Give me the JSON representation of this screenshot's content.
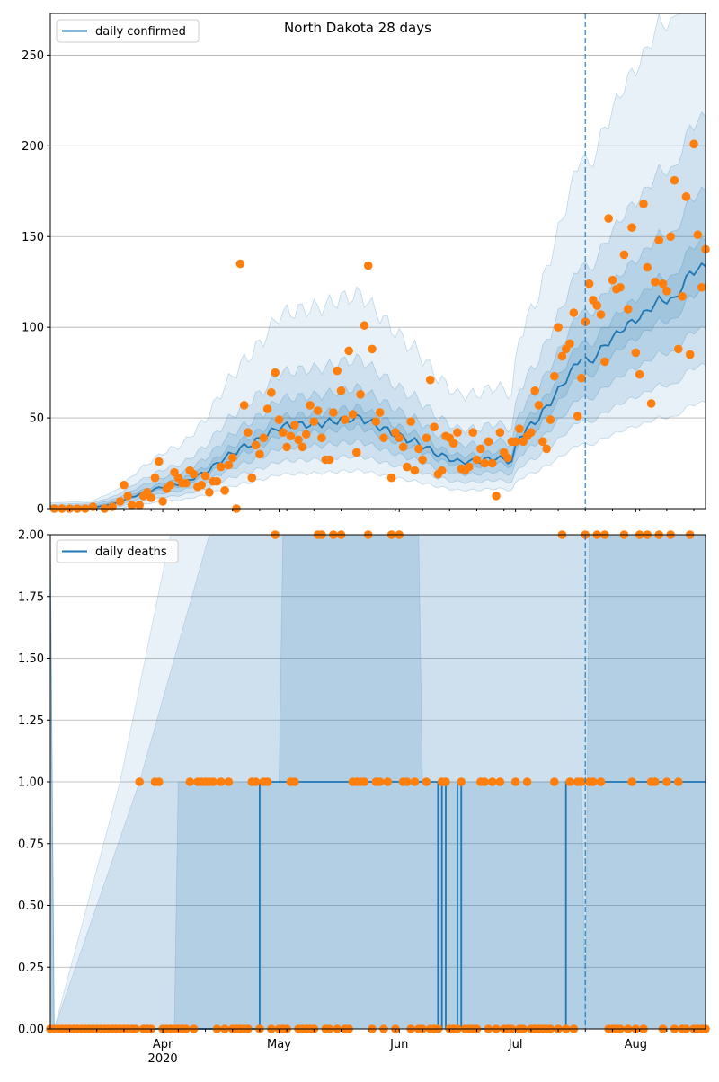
{
  "colors": {
    "line": "#1f77b4",
    "points": "#ff7f0e",
    "band": "#1f77b4",
    "grid": "#b0b0b0"
  },
  "chart_data": [
    {
      "type": "line",
      "title": "North Dakota 28 days",
      "legend": {
        "label": "daily confirmed",
        "placement": "top-left"
      },
      "grid": "horizontal",
      "xlim": [
        "2020-03-03",
        "2020-08-19"
      ],
      "ylim": [
        0,
        273
      ],
      "yticks": [
        "0",
        "50",
        "100",
        "150",
        "200",
        "250"
      ],
      "forecast_start": "2020-07-19",
      "median_anchors": [
        [
          "2020-03-04",
          0
        ],
        [
          "2020-03-14",
          0.5
        ],
        [
          "2020-03-20",
          3
        ],
        [
          "2020-03-26",
          8
        ],
        [
          "2020-04-01",
          12
        ],
        [
          "2020-04-06",
          14
        ],
        [
          "2020-04-12",
          20
        ],
        [
          "2020-04-17",
          28
        ],
        [
          "2020-04-21",
          33
        ],
        [
          "2020-04-26",
          38
        ],
        [
          "2020-05-01",
          45
        ],
        [
          "2020-05-05",
          46
        ],
        [
          "2020-05-12",
          47
        ],
        [
          "2020-05-17",
          49
        ],
        [
          "2020-05-22",
          50
        ],
        [
          "2020-05-27",
          45
        ],
        [
          "2020-06-01",
          40
        ],
        [
          "2020-06-06",
          36
        ],
        [
          "2020-06-11",
          30
        ],
        [
          "2020-06-16",
          26
        ],
        [
          "2020-06-21",
          26
        ],
        [
          "2020-06-26",
          28
        ],
        [
          "2020-06-30",
          26
        ],
        [
          "2020-07-02",
          40
        ],
        [
          "2020-07-07",
          50
        ],
        [
          "2020-07-12",
          65
        ],
        [
          "2020-07-18",
          84
        ],
        [
          "2020-07-20",
          80
        ],
        [
          "2020-07-24",
          90
        ],
        [
          "2020-07-29",
          100
        ],
        [
          "2020-08-03",
          107
        ],
        [
          "2020-08-07",
          115
        ],
        [
          "2020-08-11",
          115
        ],
        [
          "2020-08-15",
          130
        ],
        [
          "2020-08-19",
          134
        ]
      ],
      "band_factors": [
        {
          "lower": 0.9,
          "upper": 1.1
        },
        {
          "lower": 0.75,
          "upper": 1.3
        },
        {
          "lower": 0.6,
          "upper": 1.6
        },
        {
          "lower": 0.45,
          "upper": 2.3
        }
      ],
      "observed": [
        [
          "2020-03-04",
          0
        ],
        [
          "2020-03-06",
          0
        ],
        [
          "2020-03-08",
          0
        ],
        [
          "2020-03-10",
          0
        ],
        [
          "2020-03-12",
          0
        ],
        [
          "2020-03-14",
          1
        ],
        [
          "2020-03-17",
          0
        ],
        [
          "2020-03-19",
          1
        ],
        [
          "2020-03-21",
          4
        ],
        [
          "2020-03-22",
          13
        ],
        [
          "2020-03-23",
          7
        ],
        [
          "2020-03-24",
          2
        ],
        [
          "2020-03-26",
          2
        ],
        [
          "2020-03-27",
          7
        ],
        [
          "2020-03-28",
          9
        ],
        [
          "2020-03-29",
          6
        ],
        [
          "2020-03-30",
          17
        ],
        [
          "2020-03-31",
          26
        ],
        [
          "2020-04-01",
          4
        ],
        [
          "2020-04-02",
          11
        ],
        [
          "2020-04-03",
          13
        ],
        [
          "2020-04-04",
          20
        ],
        [
          "2020-04-05",
          17
        ],
        [
          "2020-04-06",
          14
        ],
        [
          "2020-04-07",
          14
        ],
        [
          "2020-04-08",
          21
        ],
        [
          "2020-04-09",
          19
        ],
        [
          "2020-04-10",
          12
        ],
        [
          "2020-04-11",
          13
        ],
        [
          "2020-04-12",
          18
        ],
        [
          "2020-04-13",
          9
        ],
        [
          "2020-04-14",
          15
        ],
        [
          "2020-04-15",
          15
        ],
        [
          "2020-04-16",
          23
        ],
        [
          "2020-04-17",
          10
        ],
        [
          "2020-04-18",
          24
        ],
        [
          "2020-04-19",
          28
        ],
        [
          "2020-04-20",
          0
        ],
        [
          "2020-04-21",
          135
        ],
        [
          "2020-04-22",
          57
        ],
        [
          "2020-04-23",
          42
        ],
        [
          "2020-04-24",
          17
        ],
        [
          "2020-04-25",
          35
        ],
        [
          "2020-04-26",
          30
        ],
        [
          "2020-04-27",
          39
        ],
        [
          "2020-04-28",
          55
        ],
        [
          "2020-04-29",
          64
        ],
        [
          "2020-04-30",
          75
        ],
        [
          "2020-05-01",
          49
        ],
        [
          "2020-05-02",
          42
        ],
        [
          "2020-05-03",
          34
        ],
        [
          "2020-05-04",
          40
        ],
        [
          "2020-05-05",
          46
        ],
        [
          "2020-05-06",
          38
        ],
        [
          "2020-05-07",
          34
        ],
        [
          "2020-05-08",
          41
        ],
        [
          "2020-05-09",
          57
        ],
        [
          "2020-05-10",
          48
        ],
        [
          "2020-05-11",
          54
        ],
        [
          "2020-05-12",
          39
        ],
        [
          "2020-05-13",
          27
        ],
        [
          "2020-05-14",
          27
        ],
        [
          "2020-05-15",
          53
        ],
        [
          "2020-05-16",
          76
        ],
        [
          "2020-05-17",
          65
        ],
        [
          "2020-05-18",
          49
        ],
        [
          "2020-05-19",
          87
        ],
        [
          "2020-05-20",
          52
        ],
        [
          "2020-05-21",
          31
        ],
        [
          "2020-05-22",
          63
        ],
        [
          "2020-05-23",
          101
        ],
        [
          "2020-05-24",
          134
        ],
        [
          "2020-05-25",
          88
        ],
        [
          "2020-05-26",
          48
        ],
        [
          "2020-05-27",
          53
        ],
        [
          "2020-05-28",
          39
        ],
        [
          "2020-05-30",
          17
        ],
        [
          "2020-05-31",
          42
        ],
        [
          "2020-06-01",
          39
        ],
        [
          "2020-06-02",
          34
        ],
        [
          "2020-06-03",
          23
        ],
        [
          "2020-06-04",
          48
        ],
        [
          "2020-06-05",
          21
        ],
        [
          "2020-06-06",
          33
        ],
        [
          "2020-06-07",
          27
        ],
        [
          "2020-06-08",
          39
        ],
        [
          "2020-06-09",
          71
        ],
        [
          "2020-06-10",
          45
        ],
        [
          "2020-06-11",
          19
        ],
        [
          "2020-06-12",
          21
        ],
        [
          "2020-06-13",
          40
        ],
        [
          "2020-06-14",
          39
        ],
        [
          "2020-06-15",
          36
        ],
        [
          "2020-06-16",
          42
        ],
        [
          "2020-06-17",
          22
        ],
        [
          "2020-06-18",
          21
        ],
        [
          "2020-06-19",
          23
        ],
        [
          "2020-06-20",
          42
        ],
        [
          "2020-06-21",
          27
        ],
        [
          "2020-06-22",
          33
        ],
        [
          "2020-06-23",
          25
        ],
        [
          "2020-06-24",
          37
        ],
        [
          "2020-06-25",
          25
        ],
        [
          "2020-06-26",
          7
        ],
        [
          "2020-06-27",
          42
        ],
        [
          "2020-06-28",
          31
        ],
        [
          "2020-06-29",
          28
        ],
        [
          "2020-06-30",
          37
        ],
        [
          "2020-07-01",
          37
        ],
        [
          "2020-07-02",
          44
        ],
        [
          "2020-07-03",
          37
        ],
        [
          "2020-07-04",
          40
        ],
        [
          "2020-07-05",
          42
        ],
        [
          "2020-07-06",
          65
        ],
        [
          "2020-07-07",
          57
        ],
        [
          "2020-07-08",
          37
        ],
        [
          "2020-07-09",
          33
        ],
        [
          "2020-07-10",
          49
        ],
        [
          "2020-07-11",
          73
        ],
        [
          "2020-07-12",
          100
        ],
        [
          "2020-07-13",
          84
        ],
        [
          "2020-07-14",
          88
        ],
        [
          "2020-07-15",
          91
        ],
        [
          "2020-07-16",
          108
        ],
        [
          "2020-07-17",
          51
        ],
        [
          "2020-07-18",
          72
        ],
        [
          "2020-07-19",
          103
        ],
        [
          "2020-07-20",
          124
        ],
        [
          "2020-07-21",
          115
        ],
        [
          "2020-07-22",
          112
        ],
        [
          "2020-07-23",
          107
        ],
        [
          "2020-07-24",
          81
        ],
        [
          "2020-07-25",
          160
        ],
        [
          "2020-07-26",
          126
        ],
        [
          "2020-07-27",
          121
        ],
        [
          "2020-07-28",
          122
        ],
        [
          "2020-07-29",
          140
        ],
        [
          "2020-07-30",
          110
        ],
        [
          "2020-07-31",
          155
        ],
        [
          "2020-08-01",
          86
        ],
        [
          "2020-08-02",
          74
        ],
        [
          "2020-08-03",
          168
        ],
        [
          "2020-08-04",
          133
        ],
        [
          "2020-08-05",
          58
        ],
        [
          "2020-08-06",
          125
        ],
        [
          "2020-08-07",
          148
        ],
        [
          "2020-08-08",
          124
        ],
        [
          "2020-08-09",
          120
        ],
        [
          "2020-08-10",
          150
        ],
        [
          "2020-08-11",
          181
        ],
        [
          "2020-08-12",
          88
        ],
        [
          "2020-08-13",
          117
        ],
        [
          "2020-08-14",
          172
        ],
        [
          "2020-08-15",
          85
        ],
        [
          "2020-08-16",
          201
        ],
        [
          "2020-08-17",
          151
        ],
        [
          "2020-08-18",
          122
        ],
        [
          "2020-08-19",
          143
        ]
      ]
    },
    {
      "type": "line",
      "title": "",
      "legend": {
        "label": "daily deaths",
        "placement": "top-left"
      },
      "grid": "horizontal",
      "xlim": [
        "2020-03-03",
        "2020-08-19"
      ],
      "ylim": [
        0,
        2
      ],
      "yticks": [
        "0.00",
        "0.25",
        "0.50",
        "0.75",
        "1.00",
        "1.25",
        "1.50",
        "1.75",
        "2.00"
      ],
      "forecast_start": "2020-07-19",
      "xticks": [
        {
          "date": "2020-04-01",
          "label": "Apr",
          "sublabel": "2020"
        },
        {
          "date": "2020-05-01",
          "label": "May",
          "sublabel": ""
        },
        {
          "date": "2020-06-01",
          "label": "Jun",
          "sublabel": ""
        },
        {
          "date": "2020-07-01",
          "label": "Jul",
          "sublabel": ""
        },
        {
          "date": "2020-08-01",
          "label": "Aug",
          "sublabel": ""
        }
      ],
      "median_steps": [
        [
          "2020-03-03",
          0
        ],
        [
          "2020-04-26",
          1
        ],
        [
          "2020-06-11",
          0
        ],
        [
          "2020-06-12",
          1
        ],
        [
          "2020-06-13",
          0
        ],
        [
          "2020-06-16",
          1
        ],
        [
          "2020-06-17",
          0
        ],
        [
          "2020-07-14",
          1
        ],
        [
          "2020-07-19",
          1
        ],
        [
          "2020-08-19",
          1
        ]
      ],
      "bands": [
        {
          "upper": [
            [
              "2020-03-03",
              2
            ],
            [
              "2020-03-04",
              0
            ],
            [
              "2020-03-21",
              1
            ],
            [
              "2020-04-03",
              2
            ],
            [
              "2020-08-19",
              2
            ]
          ],
          "lower": 0
        },
        {
          "upper": [
            [
              "2020-03-03",
              2
            ],
            [
              "2020-03-04",
              0
            ],
            [
              "2020-03-26",
              1
            ],
            [
              "2020-04-13",
              2
            ],
            [
              "2020-07-19",
              2
            ],
            [
              "2020-07-20",
              2
            ],
            [
              "2020-08-19",
              2
            ]
          ],
          "lower": 0
        },
        {
          "upper": [
            [
              "2020-03-03",
              2
            ],
            [
              "2020-03-04",
              0
            ],
            [
              "2020-04-04",
              0
            ],
            [
              "2020-04-05",
              1
            ],
            [
              "2020-05-01",
              1
            ],
            [
              "2020-05-02",
              2
            ],
            [
              "2020-06-06",
              2
            ],
            [
              "2020-06-07",
              1
            ],
            [
              "2020-07-18",
              1
            ],
            [
              "2020-07-19",
              0
            ],
            [
              "2020-07-20",
              2
            ],
            [
              "2020-08-19",
              2
            ]
          ],
          "lower": 0
        }
      ],
      "observed": {
        "ones": [
          "2020-03-26",
          "2020-03-30",
          "2020-03-31",
          "2020-04-08",
          "2020-04-10",
          "2020-04-11",
          "2020-04-12",
          "2020-04-13",
          "2020-04-14",
          "2020-04-16",
          "2020-04-18",
          "2020-04-24",
          "2020-04-25",
          "2020-04-27",
          "2020-04-28",
          "2020-05-04",
          "2020-05-05",
          "2020-05-12",
          "2020-05-20",
          "2020-05-21",
          "2020-05-22",
          "2020-05-23",
          "2020-05-26",
          "2020-05-27",
          "2020-05-29",
          "2020-06-01",
          "2020-06-02",
          "2020-06-03",
          "2020-06-05",
          "2020-06-08",
          "2020-06-12",
          "2020-06-13",
          "2020-06-17",
          "2020-06-22",
          "2020-06-23",
          "2020-06-25",
          "2020-06-27",
          "2020-07-01",
          "2020-07-04",
          "2020-07-11",
          "2020-07-15",
          "2020-07-17",
          "2020-07-18",
          "2020-07-20",
          "2020-07-21",
          "2020-07-23",
          "2020-07-29",
          "2020-07-31",
          "2020-08-04",
          "2020-08-05",
          "2020-08-06",
          "2020-08-07",
          "2020-08-09",
          "2020-08-12"
        ],
        "twos": [
          "2020-04-30",
          "2020-05-11",
          "2020-05-12",
          "2020-05-15",
          "2020-05-17",
          "2020-05-24",
          "2020-05-30",
          "2020-06-01",
          "2020-07-13",
          "2020-07-19",
          "2020-07-22",
          "2020-07-24",
          "2020-07-29",
          "2020-08-02",
          "2020-08-04",
          "2020-08-07",
          "2020-08-10",
          "2020-08-15"
        ]
      }
    }
  ]
}
